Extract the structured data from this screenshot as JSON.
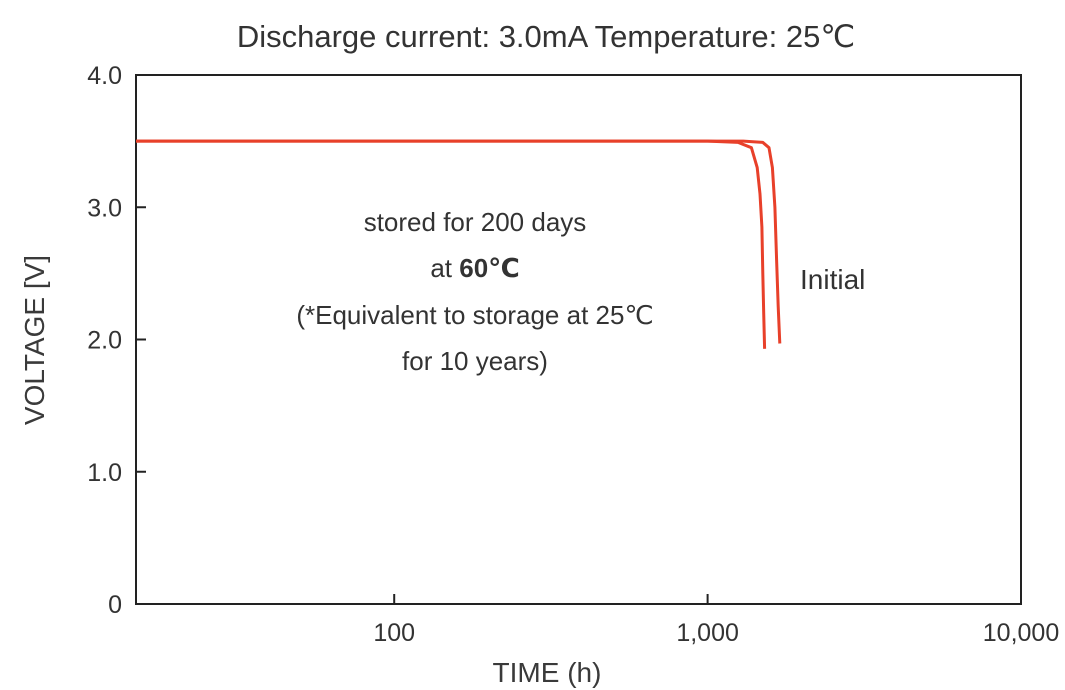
{
  "chart_data": {
    "type": "line",
    "title": "Discharge current: 3.0mA  Temperature:  25℃",
    "xlabel": "TIME (h)",
    "ylabel": "VOLTAGE [V]",
    "xscale": "log",
    "xlim": [
      15,
      10000
    ],
    "ylim": [
      0,
      4.0
    ],
    "xticks": [
      {
        "value": 100,
        "label": "100"
      },
      {
        "value": 1000,
        "label": "1,000"
      },
      {
        "value": 10000,
        "label": "10,000"
      }
    ],
    "yticks": [
      {
        "value": 0,
        "label": "0"
      },
      {
        "value": 1.0,
        "label": "1.0"
      },
      {
        "value": 2.0,
        "label": "2.0"
      },
      {
        "value": 3.0,
        "label": "3.0"
      },
      {
        "value": 4.0,
        "label": "4.0"
      }
    ],
    "grid": false,
    "line_color": "#e8402a",
    "series": [
      {
        "name": "Initial",
        "x": [
          15,
          100,
          1000,
          1300,
          1500,
          1570,
          1610,
          1640,
          1660,
          1680,
          1700
        ],
        "y": [
          3.5,
          3.5,
          3.5,
          3.5,
          3.49,
          3.45,
          3.3,
          3.0,
          2.6,
          2.25,
          1.97
        ]
      },
      {
        "name": "",
        "x": [
          15,
          100,
          1000,
          1250,
          1380,
          1440,
          1470,
          1490,
          1500,
          1510,
          1520
        ],
        "y": [
          3.5,
          3.5,
          3.5,
          3.49,
          3.45,
          3.3,
          3.1,
          2.85,
          2.5,
          2.2,
          1.93
        ]
      }
    ],
    "annotations": {
      "storage_note": [
        {
          "text": "stored for 200 days"
        },
        {
          "text": "at ",
          "bold_tail": "60℃"
        },
        {
          "text": "(*Equivalent to storage at 25℃"
        },
        {
          "text": "for 10 years)"
        }
      ],
      "initial_label": "Initial"
    }
  }
}
